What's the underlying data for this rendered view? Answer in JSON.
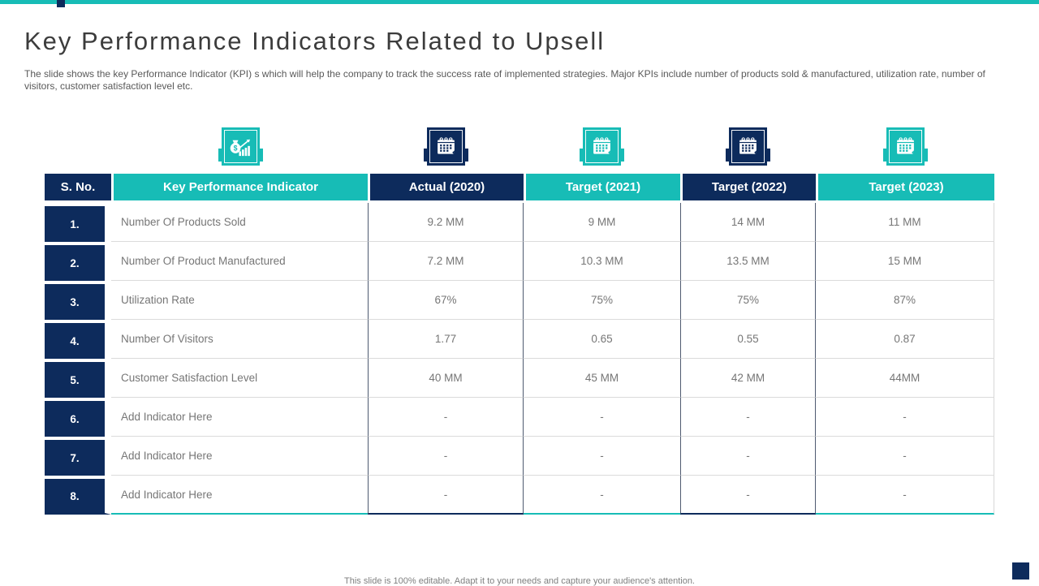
{
  "slide": {
    "title": "Key Performance Indicators Related to Upsell",
    "description": "The slide shows the key Performance Indicator (KPI) s which will help the company to track the success rate of implemented strategies. Major KPIs include number of products sold & manufactured, utilization rate, number of visitors, customer satisfaction level etc.",
    "footer": "This slide is 100% editable. Adapt it to your needs and capture your audience's attention."
  },
  "colors": {
    "teal": "#17BCB6",
    "navy": "#0D2B5C",
    "title_text": "#3C3C3C",
    "body_text": "#767676"
  },
  "icons": [
    {
      "name": "money-growth-icon",
      "style": "teal"
    },
    {
      "name": "calendar-icon",
      "style": "navy"
    },
    {
      "name": "calendar-icon",
      "style": "teal"
    },
    {
      "name": "calendar-icon",
      "style": "navy"
    },
    {
      "name": "calendar-icon",
      "style": "teal"
    }
  ],
  "table": {
    "columns": [
      {
        "label": "S. No.",
        "style": "navy"
      },
      {
        "label": "Key Performance Indicator",
        "style": "teal"
      },
      {
        "label": "Actual (2020)",
        "style": "navy"
      },
      {
        "label": "Target (2021)",
        "style": "teal"
      },
      {
        "label": "Target (2022)",
        "style": "navy"
      },
      {
        "label": "Target (2023)",
        "style": "teal"
      }
    ],
    "rows": [
      {
        "sno": "1.",
        "indicator": "Number Of Products Sold",
        "values": [
          "9.2 MM",
          "9 MM",
          "14 MM",
          "11 MM"
        ]
      },
      {
        "sno": "2.",
        "indicator": "Number Of Product Manufactured",
        "values": [
          "7.2 MM",
          "10.3 MM",
          "13.5 MM",
          "15 MM"
        ]
      },
      {
        "sno": "3.",
        "indicator": "Utilization Rate",
        "values": [
          "67%",
          "75%",
          "75%",
          "87%"
        ]
      },
      {
        "sno": "4.",
        "indicator": "Number Of Visitors",
        "values": [
          "1.77",
          "0.65",
          "0.55",
          "0.87"
        ]
      },
      {
        "sno": "5.",
        "indicator": "Customer Satisfaction Level",
        "values": [
          "40 MM",
          "45 MM",
          "42 MM",
          "44MM"
        ]
      },
      {
        "sno": "6.",
        "indicator": "Add Indicator Here",
        "values": [
          "-",
          "-",
          "-",
          "-"
        ]
      },
      {
        "sno": "7.",
        "indicator": "Add Indicator Here",
        "values": [
          "-",
          "-",
          "-",
          "-"
        ]
      },
      {
        "sno": "8.",
        "indicator": "Add Indicator Here",
        "values": [
          "-",
          "-",
          "-",
          "-"
        ]
      }
    ]
  }
}
